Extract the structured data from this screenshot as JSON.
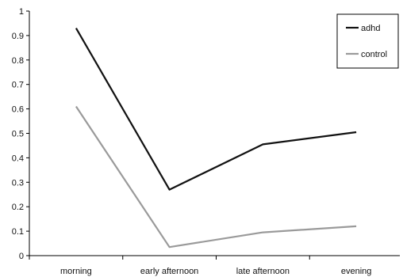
{
  "chart_data": {
    "type": "line",
    "categories": [
      "morning",
      "early afternoon",
      "late afternoon",
      "evening"
    ],
    "series": [
      {
        "name": "adhd",
        "values": [
          0.93,
          0.27,
          0.455,
          0.505
        ],
        "color": "#111111"
      },
      {
        "name": "control",
        "values": [
          0.61,
          0.035,
          0.095,
          0.12
        ],
        "color": "#9a9a9a"
      }
    ],
    "yticks": [
      "0",
      "0.1",
      "0.2",
      "0.3",
      "0.4",
      "0.5",
      "0.6",
      "0.7",
      "0.8",
      "0.9",
      "1"
    ],
    "ylim": [
      0,
      1
    ],
    "grid": false,
    "legend": "top-right",
    "title": "",
    "xlabel": "",
    "ylabel": ""
  }
}
